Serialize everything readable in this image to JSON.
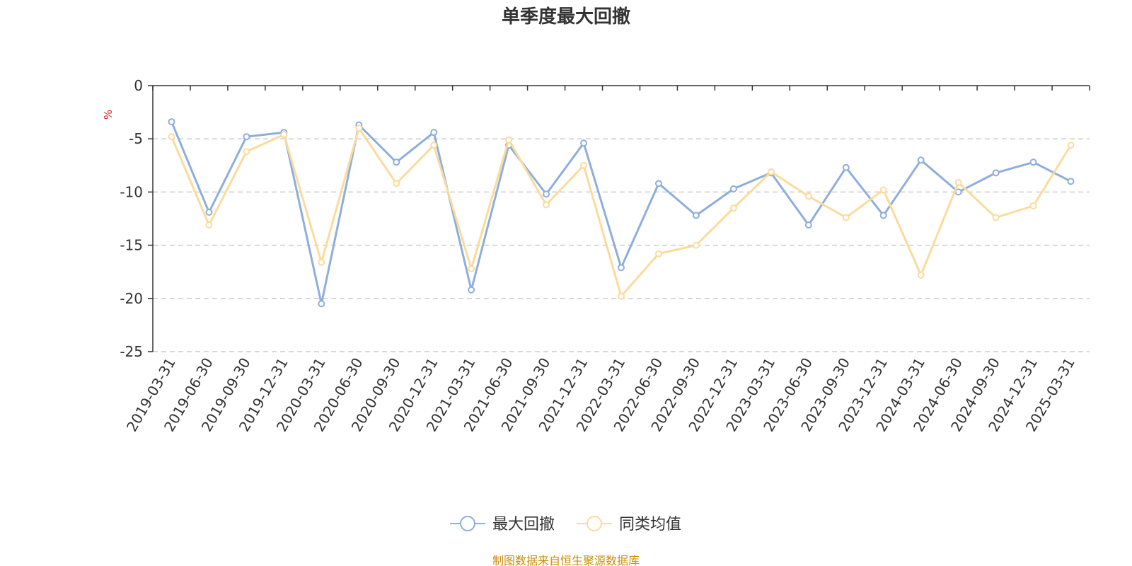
{
  "colors": {
    "series_1": "#8EAEDC",
    "series_2": "#FBDB9C",
    "unit": "#E02020",
    "source": "#C8900A",
    "grid": "#CCCCCC",
    "axis": "#333333"
  },
  "chart_data": {
    "type": "line",
    "title": "单季度最大回撤",
    "ylabel": "%",
    "xlabel": "",
    "ylim": [
      -25,
      0
    ],
    "yticks": [
      0,
      -5,
      -10,
      -15,
      -20,
      -25
    ],
    "grid": true,
    "legend_position": "bottom-center",
    "categories": [
      "2019-03-31",
      "2019-06-30",
      "2019-09-30",
      "2019-12-31",
      "2020-03-31",
      "2020-06-30",
      "2020-09-30",
      "2020-12-31",
      "2021-03-31",
      "2021-06-30",
      "2021-09-30",
      "2021-12-31",
      "2022-03-31",
      "2022-06-30",
      "2022-09-30",
      "2022-12-31",
      "2023-03-31",
      "2023-06-30",
      "2023-09-30",
      "2023-12-31",
      "2024-03-31",
      "2024-06-30",
      "2024-09-30",
      "2024-12-31",
      "2025-03-31"
    ],
    "series": [
      {
        "name": "最大回撤",
        "values": [
          -3.4,
          -11.9,
          -4.8,
          -4.4,
          -20.5,
          -3.7,
          -7.2,
          -4.4,
          -19.2,
          -5.6,
          -10.2,
          -5.4,
          -17.1,
          -9.2,
          -12.2,
          -9.7,
          -8.2,
          -13.1,
          -7.7,
          -12.2,
          -7.0,
          -10.0,
          -8.2,
          -7.2,
          -9.0
        ]
      },
      {
        "name": "同类均值",
        "values": [
          -4.8,
          -13.1,
          -6.2,
          -4.6,
          -16.6,
          -4.0,
          -9.2,
          -5.6,
          -17.2,
          -5.1,
          -11.2,
          -7.5,
          -19.8,
          -15.8,
          -15.0,
          -11.5,
          -8.1,
          -10.4,
          -12.4,
          -9.8,
          -17.8,
          -9.1,
          -12.4,
          -11.3,
          -5.6
        ]
      }
    ]
  },
  "legend": {
    "items": [
      {
        "label": "最大回撤"
      },
      {
        "label": "同类均值"
      }
    ]
  },
  "footer": {
    "source": "制图数据来自恒生聚源数据库"
  }
}
